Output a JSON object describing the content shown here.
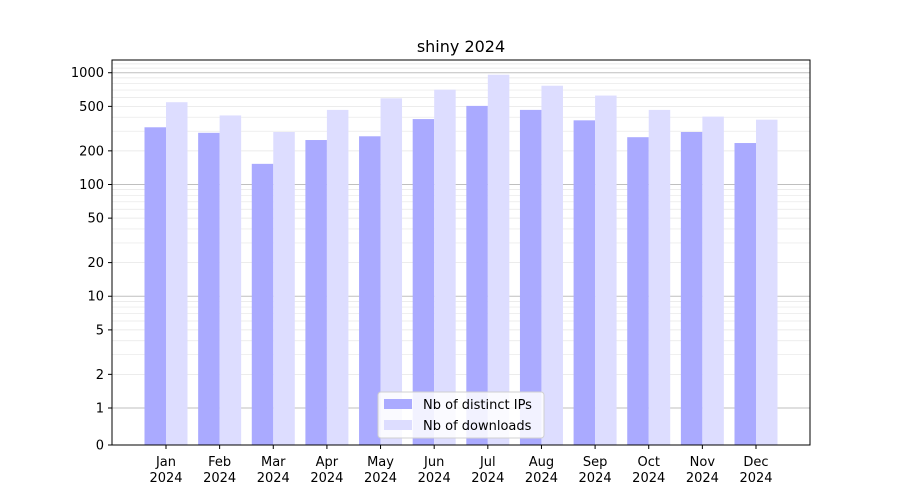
{
  "chart_data": {
    "type": "bar",
    "title": "shiny 2024",
    "xlabel": "",
    "ylabel": "",
    "yscale": "symlog",
    "ylim": [
      0,
      1300
    ],
    "yticks": [
      {
        "value": 0,
        "label": "0"
      },
      {
        "value": 1,
        "label": "1"
      },
      {
        "value": 2,
        "label": "2"
      },
      {
        "value": 5,
        "label": "5"
      },
      {
        "value": 10,
        "label": "10"
      },
      {
        "value": 20,
        "label": "20"
      },
      {
        "value": 50,
        "label": "50"
      },
      {
        "value": 100,
        "label": "100"
      },
      {
        "value": 200,
        "label": "200"
      },
      {
        "value": 500,
        "label": "500"
      },
      {
        "value": 1000,
        "label": "1000"
      }
    ],
    "categories": [
      {
        "month": "Jan",
        "year": "2024"
      },
      {
        "month": "Feb",
        "year": "2024"
      },
      {
        "month": "Mar",
        "year": "2024"
      },
      {
        "month": "Apr",
        "year": "2024"
      },
      {
        "month": "May",
        "year": "2024"
      },
      {
        "month": "Jun",
        "year": "2024"
      },
      {
        "month": "Jul",
        "year": "2024"
      },
      {
        "month": "Aug",
        "year": "2024"
      },
      {
        "month": "Sep",
        "year": "2024"
      },
      {
        "month": "Oct",
        "year": "2024"
      },
      {
        "month": "Nov",
        "year": "2024"
      },
      {
        "month": "Dec",
        "year": "2024"
      }
    ],
    "series": [
      {
        "name": "Nb of distinct IPs",
        "color": "#aaaaff",
        "values": [
          325,
          290,
          153,
          250,
          270,
          385,
          505,
          465,
          375,
          265,
          295,
          235
        ]
      },
      {
        "name": "Nb of downloads",
        "color": "#ddddff",
        "values": [
          545,
          415,
          295,
          465,
          590,
          705,
          960,
          765,
          625,
          465,
          405,
          380
        ]
      }
    ],
    "grid": true,
    "legend_position": "bottom-center"
  }
}
